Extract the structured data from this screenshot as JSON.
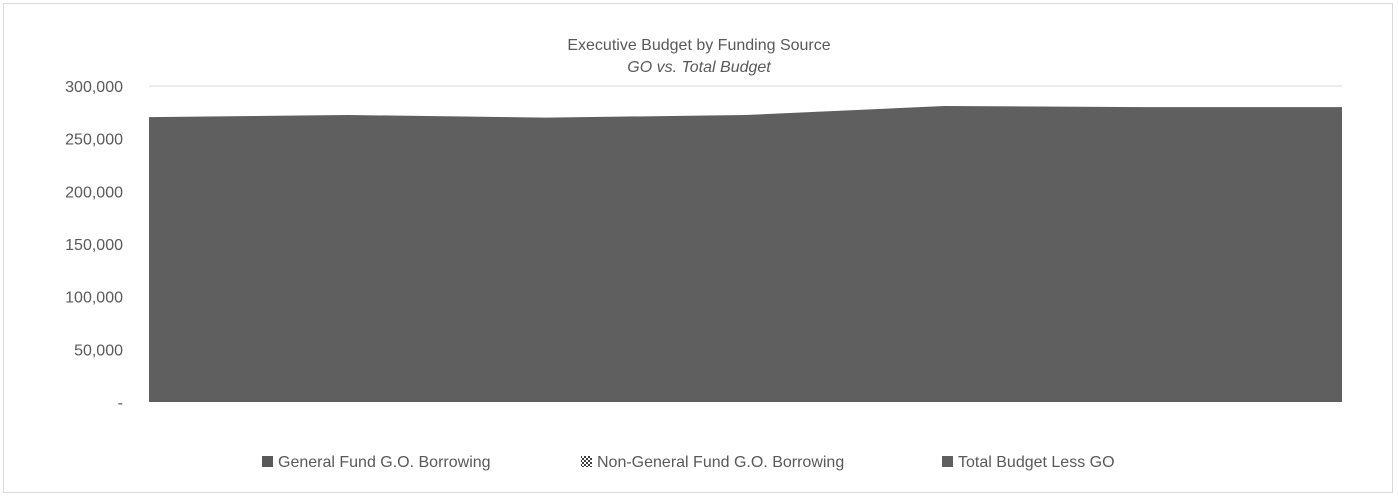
{
  "chart_data": {
    "type": "area",
    "title": "Executive Budget by Funding Source",
    "subtitle": "GO vs. Total Budget",
    "xlabel": "",
    "ylabel": "",
    "categories": [
      "",
      "",
      "",
      "",
      "",
      "",
      ""
    ],
    "ylim": [
      0,
      300000
    ],
    "yticks": [
      0,
      50000,
      100000,
      150000,
      200000,
      250000,
      300000
    ],
    "ytick_labels": [
      "-",
      "50,000",
      "100,000",
      "150,000",
      "200,000",
      "250,000",
      "300,000"
    ],
    "grid": true,
    "legend_position": "bottom",
    "stacked": true,
    "series": [
      {
        "name": "General Fund G.O. Borrowing",
        "color": "#595959",
        "values": [
          0,
          0,
          0,
          0,
          0,
          0,
          0
        ]
      },
      {
        "name": "Non-General Fund G.O. Borrowing",
        "color": "#7f7f7f",
        "pattern": "checker",
        "values": [
          0,
          0,
          0,
          0,
          0,
          0,
          0
        ]
      },
      {
        "name": "Total Budget Less GO",
        "color": "#5f5f5f",
        "values": [
          270500,
          272500,
          270000,
          272500,
          281000,
          280000,
          280000
        ]
      }
    ]
  }
}
